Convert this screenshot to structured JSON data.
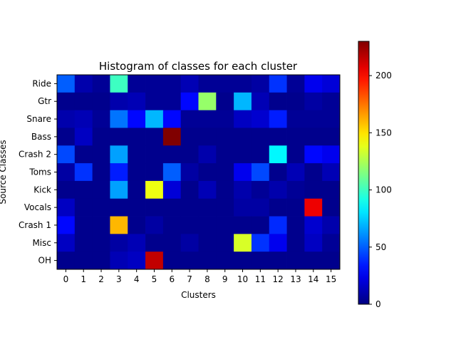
{
  "chart_data": {
    "type": "heatmap",
    "title": "Histogram of classes for each cluster",
    "xlabel": "Clusters",
    "ylabel": "Source Classes",
    "x_categories": [
      "0",
      "1",
      "2",
      "3",
      "4",
      "5",
      "6",
      "7",
      "8",
      "9",
      "10",
      "11",
      "12",
      "13",
      "14",
      "15"
    ],
    "y_categories": [
      "Ride",
      "Gtr",
      "Snare",
      "Bass",
      "Crash 2",
      "Toms",
      "Kick",
      "Vocals",
      "Crash 1",
      "Misc",
      "OH"
    ],
    "colormap": "jet",
    "vmin": 0,
    "vmax": 230,
    "colorbar_ticks": [
      0,
      50,
      100,
      150,
      200
    ],
    "colorbar_tick_labels": [
      "0",
      "50",
      "100",
      "150",
      "200"
    ],
    "values": [
      [
        50,
        10,
        5,
        100,
        5,
        5,
        5,
        12,
        5,
        5,
        5,
        8,
        40,
        5,
        25,
        20
      ],
      [
        3,
        3,
        3,
        10,
        12,
        5,
        5,
        30,
        120,
        3,
        70,
        12,
        3,
        3,
        8,
        5
      ],
      [
        10,
        12,
        5,
        55,
        30,
        70,
        30,
        5,
        5,
        5,
        15,
        18,
        35,
        5,
        5,
        5
      ],
      [
        3,
        15,
        3,
        3,
        3,
        3,
        230,
        3,
        3,
        3,
        3,
        3,
        3,
        3,
        3,
        3
      ],
      [
        45,
        3,
        3,
        65,
        3,
        3,
        3,
        3,
        10,
        3,
        3,
        3,
        85,
        3,
        30,
        25
      ],
      [
        8,
        40,
        3,
        35,
        3,
        3,
        50,
        8,
        3,
        3,
        25,
        45,
        3,
        12,
        3,
        12
      ],
      [
        3,
        3,
        3,
        65,
        3,
        140,
        20,
        3,
        12,
        3,
        10,
        5,
        10,
        5,
        3,
        3
      ],
      [
        15,
        3,
        3,
        3,
        3,
        3,
        3,
        3,
        3,
        3,
        8,
        8,
        3,
        3,
        205,
        3
      ],
      [
        30,
        3,
        3,
        160,
        3,
        8,
        3,
        3,
        3,
        3,
        3,
        3,
        38,
        3,
        18,
        10
      ],
      [
        15,
        3,
        3,
        8,
        12,
        3,
        3,
        8,
        3,
        3,
        135,
        40,
        25,
        3,
        15,
        5
      ],
      [
        3,
        3,
        3,
        12,
        15,
        215,
        3,
        3,
        3,
        3,
        3,
        3,
        3,
        3,
        3,
        3
      ]
    ]
  }
}
